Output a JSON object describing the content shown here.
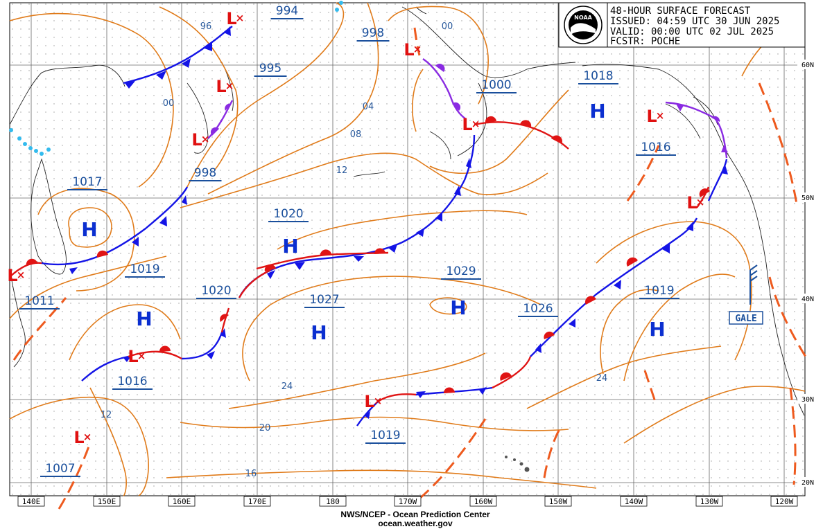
{
  "header": {
    "title": "48-HOUR SURFACE FORECAST",
    "issued": "ISSUED: 04:59 UTC 30 JUN 2025",
    "valid": "VALID:  00:00 UTC 02 JUL 2025",
    "forecaster": "FCSTR: POCHE",
    "logo_text": "NOAA"
  },
  "footer": {
    "line1": "NWS/NCEP - Ocean Prediction Center",
    "line2": "ocean.weather.gov"
  },
  "longitude_labels": [
    "140E",
    "150E",
    "160E",
    "170E",
    "180",
    "170W",
    "160W",
    "150W",
    "140W",
    "130W",
    "120W"
  ],
  "latitude_labels": [
    "60N",
    "50N",
    "40N",
    "30N",
    "20N"
  ],
  "pressure_labels": [
    "994",
    "998",
    "995",
    "1000",
    "1018",
    "1016",
    "998",
    "1017",
    "1020",
    "1019",
    "1029",
    "1020",
    "1027",
    "1026",
    "1019",
    "1011",
    "1016",
    "1019",
    "1007"
  ],
  "isobar_labels": [
    "96",
    "00",
    "00",
    "04",
    "08",
    "12",
    "12",
    "24",
    "24",
    "20",
    "16"
  ],
  "high_symbol": "H",
  "low_symbol": "L",
  "low_mark": "×",
  "warning": "GALE",
  "colors": {
    "isobar": "#e07b1a",
    "cold_front": "#1414e6",
    "warm_front": "#e01414",
    "occluded_front": "#8a2be2",
    "trough": "#ee5a1e",
    "high": "#0b2fd0",
    "low": "#e01010",
    "label_text": "#1a4f9c"
  }
}
